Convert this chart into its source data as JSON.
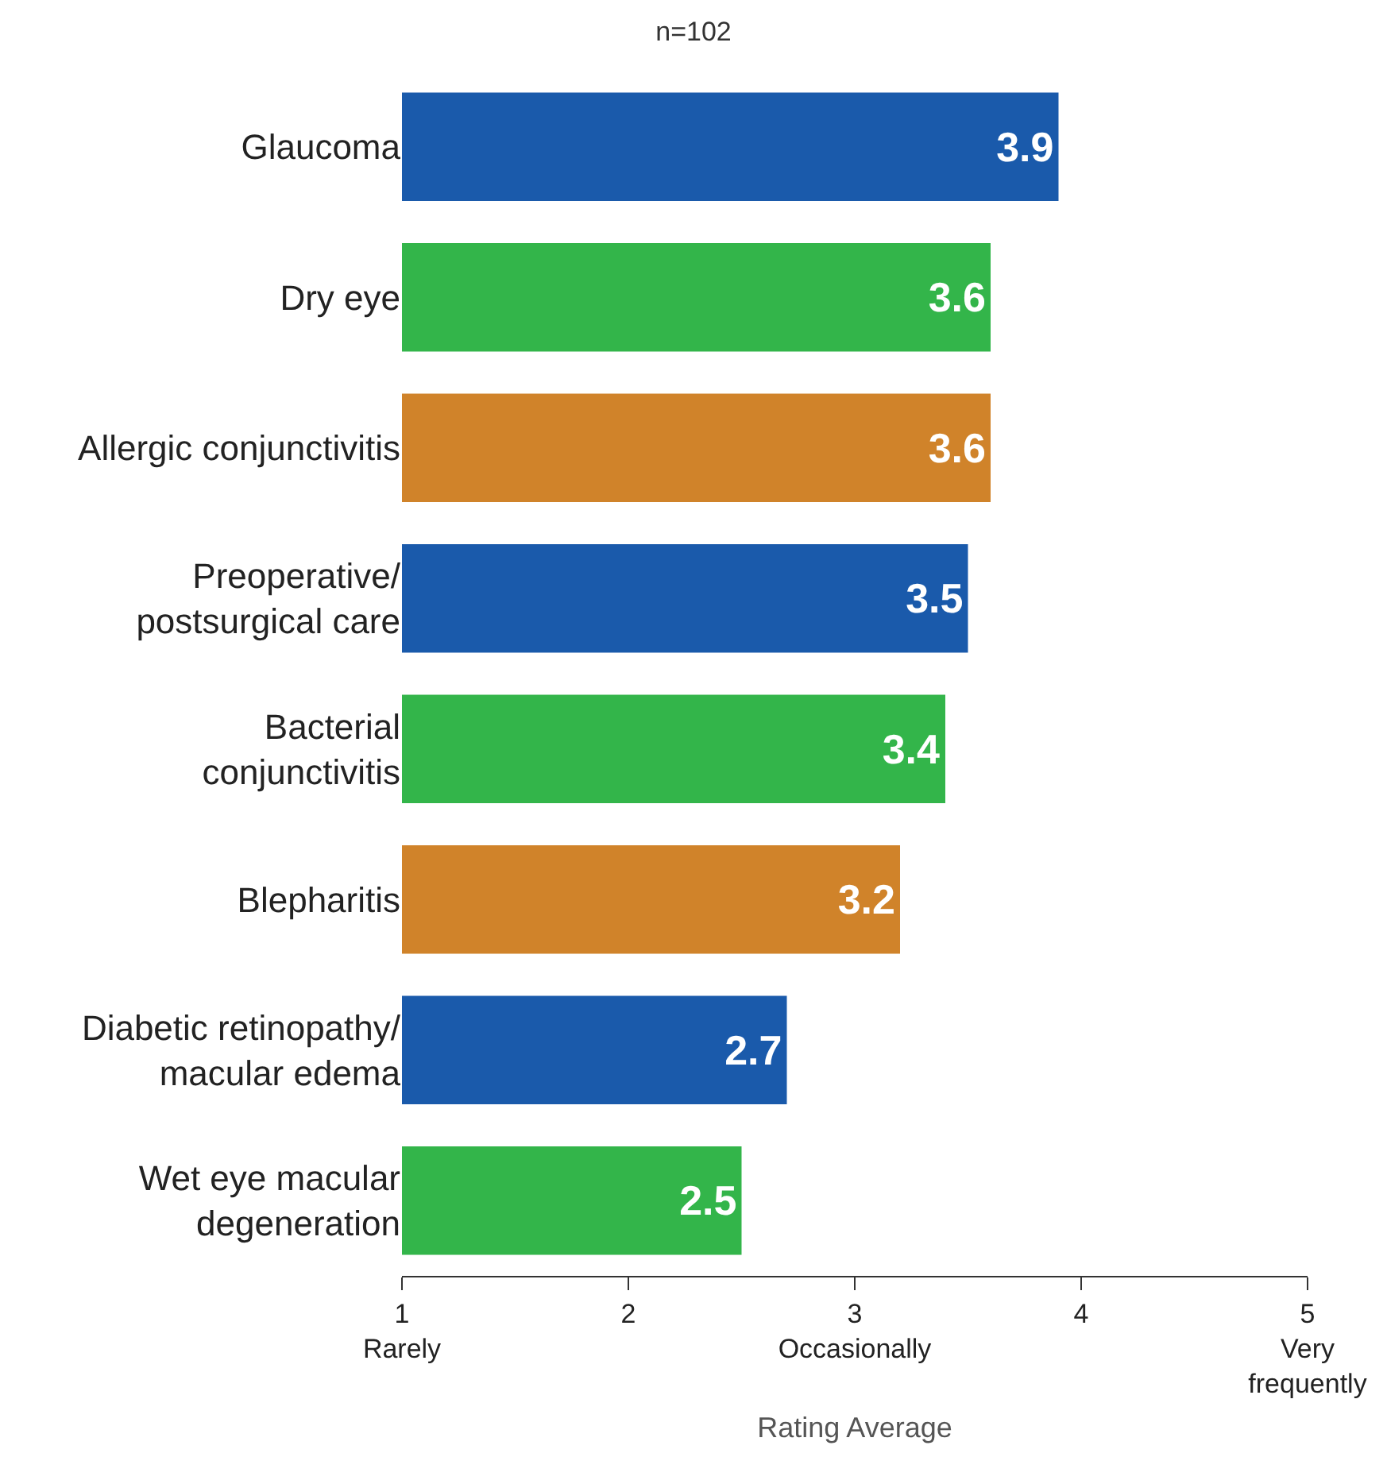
{
  "chart_data": {
    "type": "bar",
    "orientation": "horizontal",
    "title": "n=102",
    "xlabel": "Rating Average",
    "categories": [
      "Glaucoma",
      "Dry eye",
      "Allergic conjunctivitis",
      "Preoperative/\npostsurgical care",
      "Bacterial\nconjunctivitis",
      "Blepharitis",
      "Diabetic retinopathy/\nmacular edema",
      "Wet eye macular\ndegeneration"
    ],
    "values": [
      3.9,
      3.6,
      3.6,
      3.5,
      3.4,
      3.2,
      2.7,
      2.5
    ],
    "colors": [
      "#1a5aab",
      "#33b54a",
      "#d0832a",
      "#1a5aab",
      "#33b54a",
      "#d0832a",
      "#1a5aab",
      "#33b54a"
    ],
    "xlim": [
      1,
      5
    ],
    "xticks": [
      {
        "value": 1,
        "label": "1\nRarely"
      },
      2,
      {
        "value": 3,
        "label": "3\nOccasionally"
      },
      4,
      {
        "value": 5,
        "label": "5\nVery\nfrequently"
      }
    ],
    "data_labels": true,
    "grid": false,
    "legend": false
  }
}
